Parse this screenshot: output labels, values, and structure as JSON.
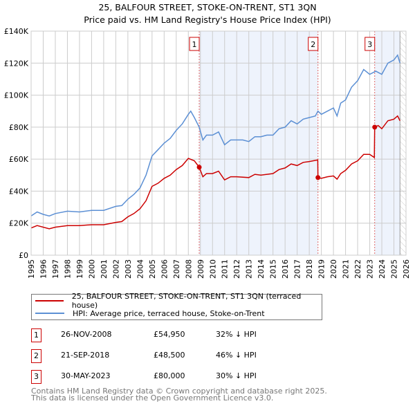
{
  "chart_data": {
    "type": "line",
    "title": "25, BALFOUR STREET, STOKE-ON-TRENT, ST1 3QN",
    "subtitle": "Price paid vs. HM Land Registry's House Price Index (HPI)",
    "xlim": [
      1995,
      2026
    ],
    "ylim": [
      0,
      140000
    ],
    "y_ticks": [
      {
        "v": 0,
        "label": "£0"
      },
      {
        "v": 20000,
        "label": "£20K"
      },
      {
        "v": 40000,
        "label": "£40K"
      },
      {
        "v": 60000,
        "label": "£60K"
      },
      {
        "v": 80000,
        "label": "£80K"
      },
      {
        "v": 100000,
        "label": "£100K"
      },
      {
        "v": 120000,
        "label": "£120K"
      },
      {
        "v": 140000,
        "label": "£140K"
      }
    ],
    "x_ticks": [
      "1995",
      "1996",
      "1997",
      "1998",
      "1999",
      "2000",
      "2001",
      "2002",
      "2003",
      "2004",
      "2005",
      "2006",
      "2007",
      "2008",
      "2009",
      "2010",
      "2011",
      "2012",
      "2013",
      "2014",
      "2015",
      "2016",
      "2017",
      "2018",
      "2019",
      "2020",
      "2021",
      "2022",
      "2023",
      "2024",
      "2025",
      "2026"
    ],
    "grid": true,
    "colors": {
      "property": "#cc0000",
      "hpi": "#5b8fd4",
      "shade": "#eef3fc"
    },
    "series": [
      {
        "name": "25, BALFOUR STREET, STOKE-ON-TRENT, ST1 3QN (terraced house)",
        "key": "property",
        "x": [
          1995,
          1995.5,
          1996.5,
          1997,
          1998,
          1999,
          2000,
          2001,
          2002,
          2002.5,
          2003,
          2003.5,
          2004,
          2004.5,
          2005,
          2005.5,
          2006,
          2006.5,
          2007,
          2007.5,
          2008,
          2008.5,
          2008.9,
          2009.2,
          2009.5,
          2010,
          2010.5,
          2011,
          2011.5,
          2012,
          2013,
          2013.5,
          2014,
          2015,
          2015.5,
          2016,
          2016.5,
          2017,
          2017.5,
          2018,
          2018.7,
          2018.72,
          2019,
          2019.5,
          2020,
          2020.3,
          2020.6,
          2021,
          2021.5,
          2022,
          2022.5,
          2023,
          2023.38,
          2023.41,
          2023.7,
          2024,
          2024.5,
          2025,
          2025.3,
          2025.5
        ],
        "y": [
          17000,
          18500,
          16500,
          17500,
          18500,
          18500,
          19000,
          19000,
          20500,
          21000,
          24000,
          26000,
          29000,
          34000,
          43000,
          45000,
          48000,
          50000,
          53500,
          56000,
          60500,
          59000,
          54950,
          49000,
          51000,
          51000,
          52500,
          47000,
          49000,
          49000,
          48500,
          50500,
          50000,
          51000,
          53500,
          54500,
          57000,
          56000,
          58000,
          58500,
          59500,
          48500,
          48000,
          49000,
          49500,
          47500,
          51000,
          53000,
          57000,
          59000,
          63000,
          63000,
          61000,
          80000,
          81000,
          79000,
          84000,
          85000,
          87000,
          84000
        ]
      },
      {
        "name": "HPI: Average price, terraced house, Stoke-on-Trent",
        "key": "hpi",
        "x": [
          1995,
          1995.5,
          1996,
          1996.5,
          1997,
          1998,
          1999,
          2000,
          2001,
          2002,
          2002.5,
          2003,
          2003.5,
          2004,
          2004.5,
          2005,
          2005.5,
          2006,
          2006.5,
          2007,
          2007.5,
          2008,
          2008.2,
          2008.5,
          2008.9,
          2009.2,
          2009.5,
          2010,
          2010.5,
          2011,
          2011.5,
          2012,
          2012.5,
          2013,
          2013.5,
          2014,
          2014.5,
          2015,
          2015.5,
          2016,
          2016.5,
          2017,
          2017.5,
          2018,
          2018.5,
          2018.72,
          2019,
          2019.5,
          2020,
          2020.3,
          2020.6,
          2021,
          2021.5,
          2022,
          2022.5,
          2023,
          2023.5,
          2024,
          2024.5,
          2025,
          2025.3,
          2025.5
        ],
        "y": [
          24500,
          27000,
          25500,
          24500,
          26000,
          27500,
          27000,
          28000,
          28000,
          30500,
          31000,
          35000,
          38000,
          42000,
          50000,
          62000,
          66000,
          70000,
          73000,
          78000,
          82000,
          88000,
          90000,
          86000,
          80000,
          72000,
          75000,
          75000,
          77000,
          69000,
          72000,
          72000,
          72000,
          71000,
          74000,
          74000,
          75000,
          75000,
          79000,
          80000,
          84000,
          82000,
          85000,
          86000,
          87000,
          90000,
          88000,
          90000,
          92000,
          87000,
          95000,
          97000,
          105000,
          109000,
          116000,
          113000,
          115000,
          113000,
          120000,
          122000,
          125000,
          120000
        ]
      }
    ],
    "sales": [
      {
        "n": "1",
        "x": 2008.9,
        "y": 54950
      },
      {
        "n": "2",
        "x": 2018.72,
        "y": 48500
      },
      {
        "n": "3",
        "x": 2023.41,
        "y": 80000
      }
    ],
    "shaded": [
      [
        2008.9,
        2018.72
      ],
      [
        2023.41,
        2025.5
      ]
    ],
    "hatch_from": 2025.5
  },
  "legend": {
    "property": "25, BALFOUR STREET, STOKE-ON-TRENT, ST1 3QN (terraced house)",
    "hpi": "HPI: Average price, terraced house, Stoke-on-Trent"
  },
  "transactions": [
    {
      "n": "1",
      "date": "26-NOV-2008",
      "price": "£54,950",
      "delta": "32% ↓ HPI"
    },
    {
      "n": "2",
      "date": "21-SEP-2018",
      "price": "£48,500",
      "delta": "46% ↓ HPI"
    },
    {
      "n": "3",
      "date": "30-MAY-2023",
      "price": "£80,000",
      "delta": "30% ↓ HPI"
    }
  ],
  "footer": {
    "line1": "Contains HM Land Registry data © Crown copyright and database right 2025.",
    "line2": "This data is licensed under the Open Government Licence v3.0."
  }
}
